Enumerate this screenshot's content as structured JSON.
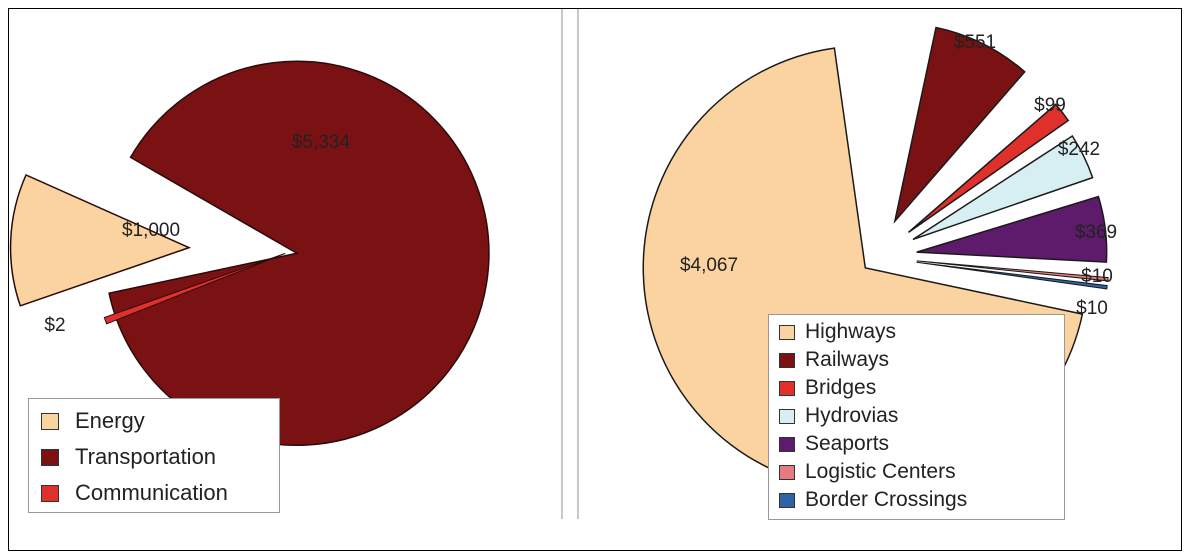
{
  "chart_data": [
    {
      "type": "pie",
      "categories": [
        "Energy",
        "Transportation",
        "Communication"
      ],
      "values": [
        1000,
        5334,
        2
      ],
      "labels": [
        "$1,000",
        "$5,334",
        "$2"
      ],
      "colors": [
        "#fbd3a0",
        "#7a1213",
        "#e0302c"
      ],
      "exploded": true,
      "legend_position": "bottom-left"
    },
    {
      "type": "pie",
      "categories": [
        "Highways",
        "Railways",
        "Bridges",
        "Hydrovias",
        "Seaports",
        "Logistic Centers",
        "Border Crossings"
      ],
      "values": [
        4067,
        551,
        99,
        242,
        369,
        10,
        10
      ],
      "labels": [
        "$4,067",
        "$551",
        "$99",
        "$242",
        "$369",
        "$10",
        "$10"
      ],
      "colors": [
        "#fbd3a0",
        "#7a1213",
        "#e0302c",
        "#d7eef2",
        "#5e1a6b",
        "#e77a80",
        "#2e63a8"
      ],
      "exploded": true,
      "legend_position": "bottom-right"
    }
  ]
}
